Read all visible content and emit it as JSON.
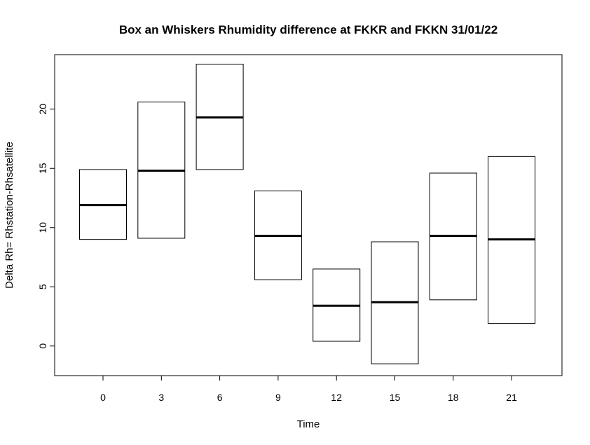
{
  "chart_data": {
    "type": "box",
    "title": "Box an Whiskers Rhumidity difference at FKKR and FKKN 31/01/22",
    "xlabel": "Time",
    "ylabel": "Delta Rh= Rhstation-Rhsatellite",
    "categories": [
      "0",
      "3",
      "6",
      "9",
      "12",
      "15",
      "18",
      "21"
    ],
    "boxes": [
      {
        "category": "0",
        "q1": 9.0,
        "median": 11.9,
        "q3": 14.9
      },
      {
        "category": "3",
        "q1": 9.1,
        "median": 14.8,
        "q3": 20.6
      },
      {
        "category": "6",
        "q1": 14.9,
        "median": 19.3,
        "q3": 23.8
      },
      {
        "category": "9",
        "q1": 5.6,
        "median": 9.3,
        "q3": 13.1
      },
      {
        "category": "12",
        "q1": 0.4,
        "median": 3.4,
        "q3": 6.5
      },
      {
        "category": "15",
        "q1": -1.5,
        "median": 3.7,
        "q3": 8.8
      },
      {
        "category": "18",
        "q1": 3.9,
        "median": 9.3,
        "q3": 14.6
      },
      {
        "category": "21",
        "q1": 1.9,
        "median": 9.0,
        "q3": 16.0
      }
    ],
    "yticks": [
      0,
      5,
      10,
      15,
      20
    ],
    "ylim": [
      -2.5,
      24.6
    ],
    "grid": false,
    "legend": "none"
  }
}
